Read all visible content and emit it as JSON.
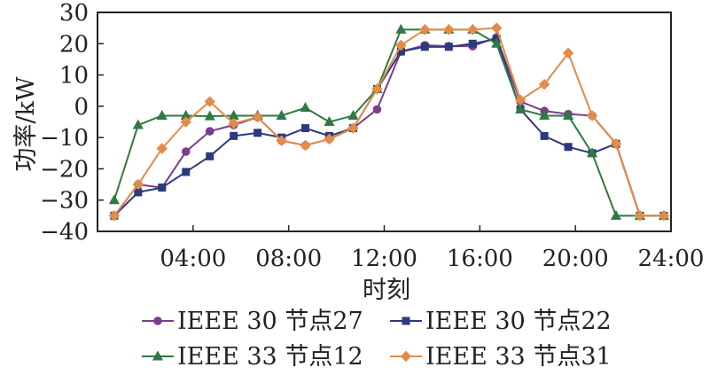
{
  "chart_data": {
    "type": "line",
    "xlabel": "时刻",
    "ylabel": "功率/kW",
    "xlim": [
      0,
      24
    ],
    "ylim": [
      -40,
      30
    ],
    "yticks": [
      30,
      20,
      10,
      0,
      -10,
      -20,
      -30,
      -40
    ],
    "xticks": [
      {
        "hour": 4,
        "label": "04:00"
      },
      {
        "hour": 8,
        "label": "08:00"
      },
      {
        "hour": 12,
        "label": "12:00"
      },
      {
        "hour": 16,
        "label": "16:00"
      },
      {
        "hour": 20,
        "label": "20:00"
      },
      {
        "hour": 24,
        "label": "24:00"
      }
    ],
    "grid": false,
    "legend_position": "bottom",
    "x": [
      0.7,
      1.7,
      2.7,
      3.7,
      4.7,
      5.7,
      6.7,
      7.7,
      8.7,
      9.7,
      10.7,
      11.7,
      12.7,
      13.7,
      14.7,
      15.7,
      16.7,
      17.7,
      18.7,
      19.7,
      20.7,
      21.7,
      22.7,
      23.7
    ],
    "series": [
      {
        "name": "IEEE 30 节点27",
        "color": "#7b3d8c",
        "marker": "circle",
        "values": [
          -35,
          -25,
          -26,
          -14.5,
          -8,
          -6,
          -3.5,
          -11,
          -12.5,
          -10.5,
          -7,
          -1,
          17.5,
          19.5,
          19.2,
          19.2,
          22,
          1.5,
          -1.5,
          -2.5,
          -3,
          -12,
          -35,
          -35
        ]
      },
      {
        "name": "IEEE 30 节点22",
        "color": "#2c3a7c",
        "marker": "square",
        "values": [
          -35,
          -27.5,
          -26,
          -21,
          -16,
          -9.5,
          -8.5,
          -10,
          -7,
          -9.5,
          -7,
          5.5,
          17.5,
          19,
          19,
          20,
          21.5,
          -1,
          -9.5,
          -13,
          -15,
          -12,
          -35,
          -35
        ]
      },
      {
        "name": "IEEE 33 节点12",
        "color": "#2e7a43",
        "marker": "triangle",
        "values": [
          -30,
          -6,
          -3,
          -3,
          -3.2,
          -3,
          -3,
          -3,
          -0.5,
          -5,
          -3,
          5.5,
          24.5,
          24.5,
          24.5,
          24.5,
          20,
          -1,
          -3,
          -3,
          -15,
          -35,
          -35,
          -35
        ]
      },
      {
        "name": "IEEE 33 节点31",
        "color": "#e38b47",
        "marker": "diamond",
        "values": [
          -35,
          -25,
          -13.5,
          -5,
          1.5,
          -5.5,
          -3.5,
          -11,
          -12.5,
          -10.5,
          -7,
          5.5,
          19.5,
          24.5,
          24.5,
          24.5,
          25,
          2,
          7,
          17,
          -3,
          -12,
          -35,
          -35
        ]
      }
    ]
  }
}
